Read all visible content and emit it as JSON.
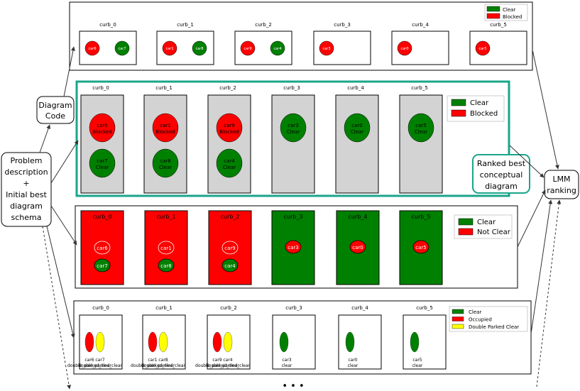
{
  "colors": {
    "clear": "#008000",
    "blocked": "#ff0000",
    "double_parked": "#ffff00",
    "grey": "#d3d3d3",
    "teal": "#1aa68a"
  },
  "left": {
    "diagram_code": [
      "Diagram",
      "Code"
    ],
    "problem": [
      "Problem",
      "description",
      "+",
      "Initial best",
      "diagram",
      "schema"
    ]
  },
  "right": {
    "lmm": [
      "LMM",
      "ranking"
    ],
    "ranked": [
      "Ranked best",
      "conceptual",
      "diagram"
    ]
  },
  "ellipsis": "• • •",
  "panel1": {
    "curbs": [
      "curb_0",
      "curb_1",
      "curb_2",
      "curb_3",
      "curb_4",
      "curb_5"
    ],
    "cars": [
      [
        {
          "label": "car6",
          "state": "blocked"
        },
        {
          "label": "car7",
          "state": "clear"
        }
      ],
      [
        {
          "label": "car1",
          "state": "blocked"
        },
        {
          "label": "car8",
          "state": "clear"
        }
      ],
      [
        {
          "label": "car9",
          "state": "blocked"
        },
        {
          "label": "car4",
          "state": "clear"
        }
      ],
      [
        {
          "label": "car3",
          "state": "blocked"
        }
      ],
      [
        {
          "label": "car0",
          "state": "blocked"
        }
      ],
      [
        {
          "label": "car5",
          "state": "blocked"
        }
      ]
    ],
    "legend": [
      {
        "label": "Clear",
        "state": "clear"
      },
      {
        "label": "Blocked",
        "state": "blocked"
      }
    ]
  },
  "panel2": {
    "curbs": [
      "curb_0",
      "curb_1",
      "curb_2",
      "curb_3",
      "curb_4",
      "curb_5"
    ],
    "cars": [
      [
        {
          "label": "car6",
          "status": "Blocked",
          "state": "blocked"
        },
        {
          "label": "car7",
          "status": "Clear",
          "state": "clear"
        }
      ],
      [
        {
          "label": "car1",
          "status": "Blocked",
          "state": "blocked"
        },
        {
          "label": "car8",
          "status": "Clear",
          "state": "clear"
        }
      ],
      [
        {
          "label": "car9",
          "status": "Blocked",
          "state": "blocked"
        },
        {
          "label": "car4",
          "status": "Clear",
          "state": "clear"
        }
      ],
      [
        {
          "label": "car3",
          "status": "Clear",
          "state": "clear"
        }
      ],
      [
        {
          "label": "car0",
          "status": "Clear",
          "state": "clear"
        }
      ],
      [
        {
          "label": "car5",
          "status": "Clear",
          "state": "clear"
        }
      ]
    ],
    "legend": [
      {
        "label": "Clear",
        "state": "clear"
      },
      {
        "label": "Blocked",
        "state": "blocked"
      }
    ]
  },
  "panel3": {
    "curbs": [
      "curb_0",
      "curb_1",
      "curb_2",
      "curb_3",
      "curb_4",
      "curb_5"
    ],
    "curb_states": [
      "blocked",
      "blocked",
      "blocked",
      "clear",
      "clear",
      "clear"
    ],
    "cars": [
      [
        {
          "label": "car6",
          "state": "outline"
        },
        {
          "label": "car7",
          "state": "clear"
        }
      ],
      [
        {
          "label": "car1",
          "state": "outline"
        },
        {
          "label": "car8",
          "state": "clear"
        }
      ],
      [
        {
          "label": "car9",
          "state": "outline"
        },
        {
          "label": "car4",
          "state": "clear"
        }
      ],
      [
        {
          "label": "car3",
          "state": "blocked"
        }
      ],
      [
        {
          "label": "car0",
          "state": "blocked"
        }
      ],
      [
        {
          "label": "car5",
          "state": "blocked"
        }
      ]
    ],
    "legend": [
      {
        "label": "Clear",
        "state": "clear"
      },
      {
        "label": "Not Clear",
        "state": "blocked"
      }
    ]
  },
  "panel4": {
    "curbs": [
      "curb_0",
      "curb_1",
      "curb_2",
      "curb_3",
      "curb_4",
      "curb_5"
    ],
    "cars": [
      [
        {
          "label": "car6",
          "status": "double_parked_clear",
          "state": "blocked"
        },
        {
          "label": "car7",
          "status": "double_parked_clear",
          "state": "double"
        }
      ],
      [
        {
          "label": "car1",
          "status": "double_parked_clear",
          "state": "blocked"
        },
        {
          "label": "car8",
          "status": "double_parked_clear",
          "state": "double"
        }
      ],
      [
        {
          "label": "car9",
          "status": "double_parked_clear",
          "state": "blocked"
        },
        {
          "label": "car4",
          "status": "double_parked_clear",
          "state": "double"
        }
      ],
      [
        {
          "label": "car3",
          "status": "clear",
          "state": "clear"
        }
      ],
      [
        {
          "label": "car0",
          "status": "clear",
          "state": "clear"
        }
      ],
      [
        {
          "label": "car5",
          "status": "clear",
          "state": "clear"
        }
      ]
    ],
    "legend": [
      {
        "label": "Clear",
        "state": "clear"
      },
      {
        "label": "Occupied",
        "state": "blocked"
      },
      {
        "label": "Double Parked Clear",
        "state": "double"
      }
    ]
  }
}
